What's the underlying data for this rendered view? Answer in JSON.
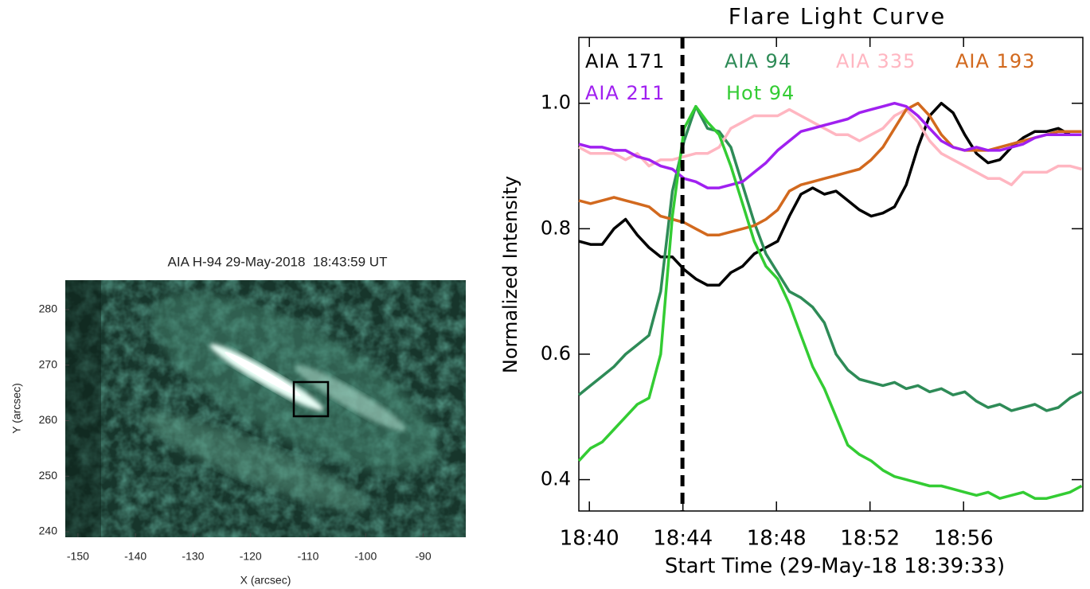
{
  "chart_data": [
    {
      "type": "image",
      "title": "AIA H-94 29-May-2018  18:43:59 UT",
      "xlabel": "X (arcsec)",
      "ylabel": "Y (arcsec)",
      "xlim": [
        -152.2,
        -82.6
      ],
      "ylim": [
        239.0,
        285.3
      ],
      "xticks": [
        -150,
        -140,
        -130,
        -120,
        -110,
        -100,
        -90
      ],
      "yticks": [
        240,
        250,
        260,
        270,
        280
      ]
    },
    {
      "type": "line",
      "title": "Flare Light Curve",
      "xlabel": "Start Time (29-May-18 18:39:33)",
      "ylabel": "Normalized Intensity",
      "xlim": [
        39.55,
        61.1
      ],
      "ylim": [
        0.35,
        1.105
      ],
      "xticks": [
        {
          "value": 40,
          "label": "18:40"
        },
        {
          "value": 44,
          "label": "18:44"
        },
        {
          "value": 48,
          "label": "18:48"
        },
        {
          "value": 52,
          "label": "18:52"
        },
        {
          "value": 56,
          "label": "18:56"
        }
      ],
      "yticks": [
        0.4,
        0.6,
        0.8,
        {
          "value": 1,
          "label": "1.0"
        }
      ],
      "vline": 43.98,
      "x": [
        39.55,
        40.05,
        40.55,
        41.05,
        41.55,
        42.05,
        42.55,
        43.05,
        43.55,
        44.05,
        44.55,
        45.05,
        45.55,
        46.05,
        46.55,
        47.05,
        47.55,
        48.05,
        48.55,
        49.05,
        49.55,
        50.05,
        50.55,
        51.05,
        51.55,
        52.05,
        52.55,
        53.05,
        53.55,
        54.05,
        54.55,
        55.05,
        55.55,
        56.05,
        56.55,
        57.05,
        57.55,
        58.05,
        58.55,
        59.05,
        59.55,
        60.05,
        60.55,
        61.05
      ],
      "series": [
        {
          "name": "AIA 171",
          "color": "#000000",
          "values": [
            0.78,
            0.775,
            0.775,
            0.8,
            0.815,
            0.79,
            0.77,
            0.755,
            0.755,
            0.735,
            0.72,
            0.71,
            0.71,
            0.73,
            0.74,
            0.76,
            0.77,
            0.78,
            0.82,
            0.855,
            0.865,
            0.855,
            0.86,
            0.845,
            0.83,
            0.82,
            0.825,
            0.835,
            0.87,
            0.93,
            0.98,
            1.0,
            0.985,
            0.95,
            0.92,
            0.905,
            0.91,
            0.93,
            0.945,
            0.955,
            0.955,
            0.96,
            0.95,
            0.95
          ]
        },
        {
          "name": "AIA 94",
          "color": "#2e8b57",
          "values": [
            0.535,
            0.55,
            0.565,
            0.58,
            0.6,
            0.615,
            0.63,
            0.7,
            0.86,
            0.94,
            0.995,
            0.96,
            0.955,
            0.93,
            0.87,
            0.81,
            0.76,
            0.73,
            0.7,
            0.69,
            0.675,
            0.65,
            0.6,
            0.575,
            0.56,
            0.555,
            0.55,
            0.555,
            0.545,
            0.55,
            0.54,
            0.545,
            0.535,
            0.54,
            0.525,
            0.515,
            0.52,
            0.51,
            0.515,
            0.52,
            0.51,
            0.515,
            0.53,
            0.54
          ]
        },
        {
          "name": "AIA 335",
          "color": "#ffb6c1",
          "values": [
            0.93,
            0.92,
            0.92,
            0.92,
            0.91,
            0.92,
            0.9,
            0.91,
            0.91,
            0.915,
            0.92,
            0.92,
            0.93,
            0.96,
            0.97,
            0.98,
            0.98,
            0.98,
            0.99,
            0.98,
            0.97,
            0.96,
            0.95,
            0.95,
            0.94,
            0.95,
            0.96,
            0.98,
            0.99,
            0.97,
            0.94,
            0.92,
            0.91,
            0.9,
            0.89,
            0.88,
            0.88,
            0.87,
            0.89,
            0.89,
            0.89,
            0.9,
            0.9,
            0.895
          ]
        },
        {
          "name": "AIA 193",
          "color": "#d2691e",
          "values": [
            0.845,
            0.84,
            0.845,
            0.85,
            0.845,
            0.84,
            0.835,
            0.82,
            0.815,
            0.81,
            0.8,
            0.79,
            0.79,
            0.795,
            0.8,
            0.805,
            0.815,
            0.83,
            0.86,
            0.87,
            0.875,
            0.88,
            0.885,
            0.89,
            0.895,
            0.91,
            0.93,
            0.96,
            0.99,
            1.0,
            0.98,
            0.95,
            0.93,
            0.925,
            0.925,
            0.925,
            0.93,
            0.935,
            0.94,
            0.945,
            0.95,
            0.955,
            0.955,
            0.955
          ]
        },
        {
          "name": "AIA 211",
          "color": "#a020f0",
          "values": [
            0.935,
            0.93,
            0.93,
            0.925,
            0.925,
            0.915,
            0.91,
            0.9,
            0.895,
            0.88,
            0.875,
            0.865,
            0.865,
            0.87,
            0.875,
            0.89,
            0.905,
            0.925,
            0.94,
            0.955,
            0.96,
            0.965,
            0.97,
            0.975,
            0.985,
            0.99,
            0.995,
            1.0,
            0.995,
            0.98,
            0.96,
            0.94,
            0.93,
            0.925,
            0.93,
            0.925,
            0.925,
            0.93,
            0.935,
            0.945,
            0.95,
            0.95,
            0.95,
            0.95
          ]
        },
        {
          "name": "Hot 94",
          "color": "#33cc33",
          "values": [
            0.43,
            0.45,
            0.46,
            0.48,
            0.5,
            0.52,
            0.53,
            0.6,
            0.82,
            0.96,
            0.995,
            0.97,
            0.95,
            0.9,
            0.84,
            0.78,
            0.74,
            0.72,
            0.68,
            0.63,
            0.58,
            0.545,
            0.5,
            0.455,
            0.44,
            0.43,
            0.415,
            0.405,
            0.4,
            0.395,
            0.39,
            0.39,
            0.385,
            0.38,
            0.375,
            0.38,
            0.37,
            0.375,
            0.38,
            0.37,
            0.37,
            0.375,
            0.38,
            0.39
          ]
        }
      ]
    }
  ]
}
